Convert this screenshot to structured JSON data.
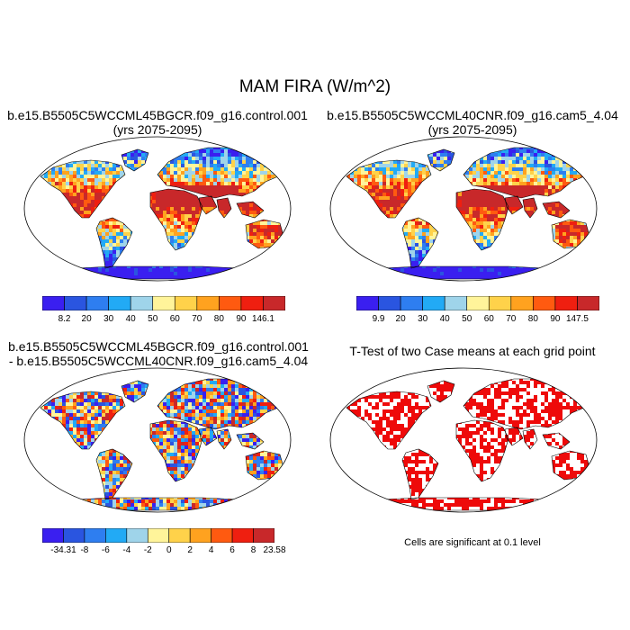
{
  "title": "MAM FIRA (W/m^2)",
  "panels": [
    {
      "title_line1": "b.e15.B5505C5WCCML45BGCR.f09_g16.control.001",
      "title_line2": "(yrs 2075-2095)",
      "colorbar": {
        "labels": [
          "8.2",
          "20",
          "30",
          "40",
          "50",
          "60",
          "70",
          "80",
          "90",
          "146.1"
        ],
        "colors": [
          "#3a1ff0",
          "#2a55e0",
          "#2e7ef0",
          "#22aaf5",
          "#9fd4ea",
          "#fff49a",
          "#ffd24a",
          "#ffa21f",
          "#ff5a10",
          "#ef1f10",
          "#c8282a"
        ]
      }
    },
    {
      "title_line1": "b.e15.B5505C5WCCML40CNR.f09_g16.cam5_4.04",
      "title_line2": "(yrs 2075-2095)",
      "colorbar": {
        "labels": [
          "9.9",
          "20",
          "30",
          "40",
          "50",
          "60",
          "70",
          "80",
          "90",
          "147.5"
        ],
        "colors": [
          "#3a1ff0",
          "#2a55e0",
          "#2e7ef0",
          "#22aaf5",
          "#9fd4ea",
          "#fff49a",
          "#ffd24a",
          "#ffa21f",
          "#ff5a10",
          "#ef1f10",
          "#c8282a"
        ]
      }
    },
    {
      "title_line1": "b.e15.B5505C5WCCML45BGCR.f09_g16.control.001",
      "title_line2": "- b.e15.B5505C5WCCML40CNR.f09_g16.cam5_4.04",
      "colorbar": {
        "labels": [
          "-34.31",
          "-8",
          "-6",
          "-4",
          "-2",
          "0",
          "2",
          "4",
          "6",
          "8",
          "23.58"
        ],
        "colors": [
          "#3a1ff0",
          "#2a55e0",
          "#2e7ef0",
          "#22aaf5",
          "#9fd4ea",
          "#fff49a",
          "#ffd24a",
          "#ffa21f",
          "#ff5a10",
          "#ef1f10",
          "#c8282a"
        ]
      }
    },
    {
      "title_line1": "T-Test of two Case means at each grid point",
      "note": "Cells are significant at 0.1 level",
      "colors": [
        "#ee0a0a"
      ]
    }
  ]
}
